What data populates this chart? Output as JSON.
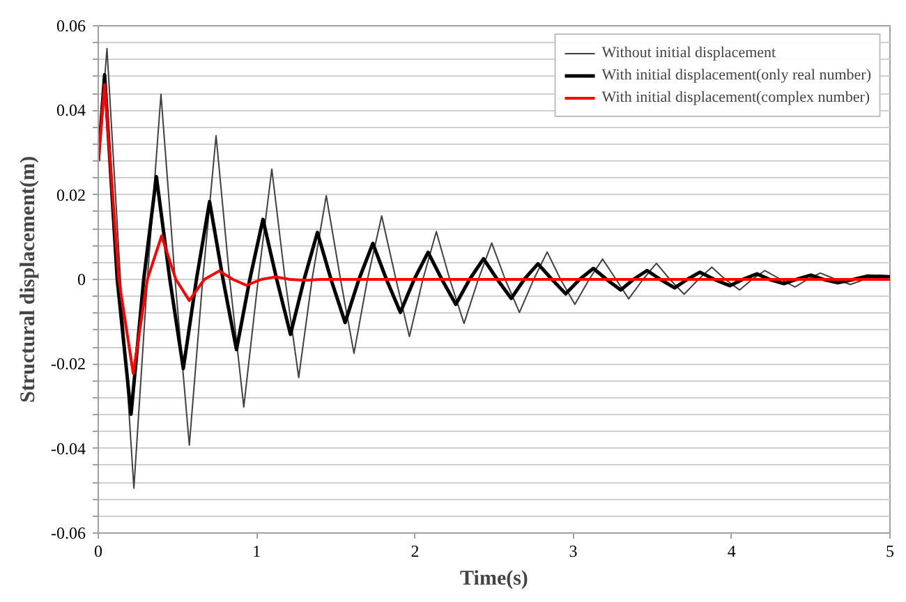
{
  "chart_data": {
    "type": "line",
    "xlabel": "Time(s)",
    "ylabel": "Structural displacement(m)",
    "xlim": [
      0,
      5
    ],
    "xticks": [
      0,
      1,
      2,
      3,
      4,
      5
    ],
    "ylim": [
      -0.06,
      0.06
    ],
    "yticks": [
      -0.06,
      {
        "value": -0.056,
        "label": null
      },
      {
        "value": -0.052,
        "label": null
      },
      {
        "value": -0.048,
        "label": null
      },
      {
        "value": -0.044,
        "label": null
      },
      -0.04,
      {
        "value": -0.036,
        "label": null
      },
      {
        "value": -0.032,
        "label": null
      },
      {
        "value": -0.028,
        "label": null
      },
      {
        "value": -0.024,
        "label": null
      },
      -0.02,
      {
        "value": -0.016,
        "label": null
      },
      {
        "value": -0.012,
        "label": null
      },
      {
        "value": -0.008,
        "label": null
      },
      {
        "value": -0.004,
        "label": null
      },
      0,
      {
        "value": 0.004,
        "label": null
      },
      {
        "value": 0.008,
        "label": null
      },
      {
        "value": 0.012,
        "label": null
      },
      {
        "value": 0.016,
        "label": null
      },
      0.02,
      {
        "value": 0.024,
        "label": null
      },
      {
        "value": 0.028,
        "label": null
      },
      {
        "value": 0.032,
        "label": null
      },
      {
        "value": 0.036,
        "label": null
      },
      0.04,
      {
        "value": 0.044,
        "label": null
      },
      {
        "value": 0.048,
        "label": null
      },
      {
        "value": 0.052,
        "label": null
      },
      {
        "value": 0.056,
        "label": null
      },
      0.06
    ],
    "grid": "y",
    "legend": "top right",
    "marker": "none",
    "series": [
      {
        "name": "Without initial displacement",
        "color": "#404040",
        "x": [
          0,
          0.055,
          0.14,
          0.225,
          0.31,
          0.396,
          0.485,
          0.575,
          0.66,
          0.744,
          0.83,
          0.919,
          1.01,
          1.096,
          1.18,
          1.266,
          1.35,
          1.44,
          1.53,
          1.615,
          1.7,
          1.79,
          1.88,
          1.965,
          2.05,
          2.135,
          2.22,
          2.31,
          2.4,
          2.485,
          2.57,
          2.66,
          2.75,
          2.835,
          2.92,
          3.01,
          3.1,
          3.185,
          3.27,
          3.35,
          3.44,
          3.525,
          3.61,
          3.7,
          3.79,
          3.875,
          3.96,
          4.05,
          4.13,
          4.21,
          4.31,
          4.4,
          4.48,
          4.56,
          4.66,
          4.75,
          4.84,
          4.93,
          5.0
        ],
        "values": [
          0.028,
          0.0546,
          0,
          -0.0494,
          0,
          0.0438,
          0,
          -0.0392,
          0,
          0.034,
          0,
          -0.0302,
          0,
          0.0261,
          0,
          -0.0232,
          0,
          0.0198,
          0,
          -0.0175,
          0,
          0.015,
          0,
          -0.0135,
          0,
          0.0113,
          0,
          -0.0104,
          0,
          0.0086,
          0,
          -0.0078,
          0,
          0.0065,
          0,
          -0.0059,
          0,
          0.0048,
          0,
          -0.0046,
          0,
          0.0038,
          0,
          -0.0035,
          0,
          0.0029,
          0,
          -0.0025,
          0,
          0.0021,
          0,
          -0.0018,
          0,
          0.0015,
          0,
          -0.0012,
          0,
          0.001,
          0.0008
        ]
      },
      {
        "name": "With initial displacement(only real number)",
        "color": "#000000",
        "x": [
          0,
          0.04,
          0.12,
          0.207,
          0.287,
          0.367,
          0.452,
          0.537,
          0.62,
          0.703,
          0.788,
          0.873,
          0.957,
          1.04,
          1.127,
          1.214,
          1.3,
          1.384,
          1.47,
          1.559,
          1.646,
          1.734,
          1.82,
          1.908,
          1.995,
          2.083,
          2.17,
          2.258,
          2.345,
          2.433,
          2.52,
          2.608,
          2.69,
          2.777,
          2.865,
          2.952,
          3.04,
          3.127,
          3.21,
          3.3,
          3.38,
          3.466,
          3.55,
          3.64,
          3.72,
          3.8,
          3.89,
          3.99,
          4.07,
          4.16,
          4.24,
          4.33,
          4.41,
          4.5,
          4.58,
          4.67,
          4.77,
          4.86,
          5.0
        ],
        "values": [
          0.028,
          0.0484,
          0,
          -0.0319,
          0,
          0.0243,
          0,
          -0.0211,
          0,
          0.0184,
          0,
          -0.0166,
          0,
          0.0142,
          0,
          -0.013,
          0,
          0.0111,
          0,
          -0.0102,
          0,
          0.0085,
          0,
          -0.0078,
          0,
          0.0064,
          0,
          -0.0059,
          0,
          0.0049,
          0,
          -0.0045,
          0,
          0.0037,
          0,
          -0.0034,
          0,
          0.0026,
          0,
          -0.0025,
          0,
          0.0021,
          0,
          -0.002,
          0,
          0.0017,
          0,
          -0.0015,
          0,
          0.0013,
          0,
          -0.001,
          0,
          0.001,
          0,
          -0.0008,
          0,
          0.0008,
          0.0006
        ]
      },
      {
        "name": "With initial displacement(complex number)",
        "color": "#ff0000",
        "x": [
          0,
          0.04,
          0.13,
          0.221,
          0.31,
          0.4,
          0.49,
          0.575,
          0.67,
          0.764,
          0.85,
          0.936,
          1.03,
          1.12,
          1.21,
          1.31,
          1.4,
          5.0
        ],
        "values": [
          0.028,
          0.0461,
          0,
          -0.0223,
          0,
          0.0103,
          0,
          -0.005,
          0,
          0.002,
          0,
          -0.0014,
          0,
          0.0006,
          0,
          -0.0002,
          0,
          0
        ]
      }
    ]
  }
}
